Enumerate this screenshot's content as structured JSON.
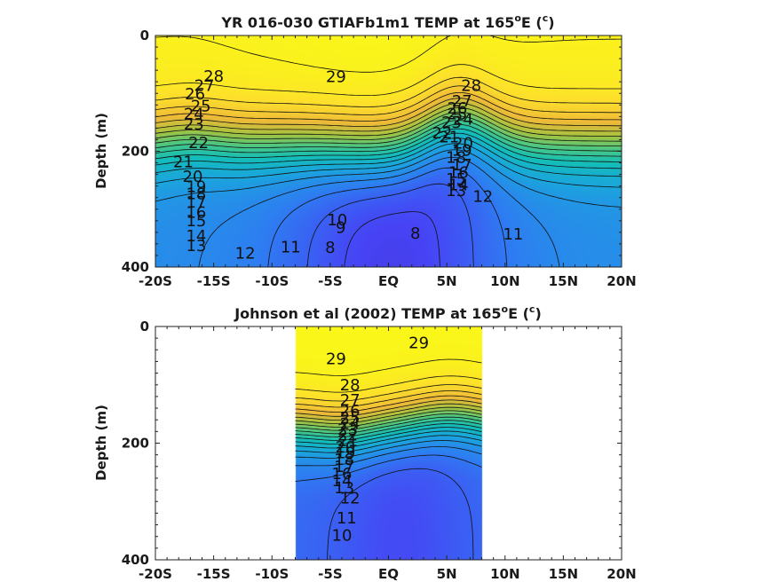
{
  "chart_data": [
    {
      "type": "heatmap",
      "subtype": "filled-contour",
      "title_prefix": "YR 016-030 GTIAFb1m1 TEMP at 165",
      "title_deg": "o",
      "title_mid": "E (",
      "title_unit": "c",
      "title_end": ")",
      "xlabel": "",
      "ylabel": "Depth (m)",
      "x_ticks": [
        -20,
        -15,
        -10,
        -5,
        0,
        5,
        10,
        15,
        20
      ],
      "x_tick_labels": [
        "-20S",
        "-15S",
        "-10S",
        "-5S",
        "EQ",
        "5N",
        "10N",
        "15N",
        "20N"
      ],
      "y_ticks": [
        0,
        200,
        400
      ],
      "y_tick_labels": [
        "0",
        "200",
        "400"
      ],
      "xlim": [
        -20,
        20
      ],
      "ylim": [
        0,
        400
      ],
      "y_reversed": true,
      "data_extent": [
        -20,
        20
      ],
      "colormap": [
        "#3e26a8",
        "#4743f5",
        "#2d7ff1",
        "#1aa6dc",
        "#13beb8",
        "#4cc782",
        "#a5c340",
        "#efba38",
        "#fde02b",
        "#f9fb15"
      ],
      "temp_range": [
        6,
        30
      ],
      "contour_labels": [
        {
          "text": "29",
          "x": -4.5,
          "y": 73
        },
        {
          "text": "28",
          "x": -15.0,
          "y": 72
        },
        {
          "text": "27",
          "x": -15.8,
          "y": 88
        },
        {
          "text": "26",
          "x": -16.6,
          "y": 103
        },
        {
          "text": "25",
          "x": -16.1,
          "y": 123
        },
        {
          "text": "24",
          "x": -16.7,
          "y": 137
        },
        {
          "text": "23",
          "x": -16.7,
          "y": 155
        },
        {
          "text": "22",
          "x": -16.3,
          "y": 187
        },
        {
          "text": "21",
          "x": -17.6,
          "y": 220
        },
        {
          "text": "20",
          "x": -16.8,
          "y": 245
        },
        {
          "text": "19",
          "x": -16.5,
          "y": 263
        },
        {
          "text": "18",
          "x": -16.5,
          "y": 275
        },
        {
          "text": "17",
          "x": -16.5,
          "y": 290
        },
        {
          "text": "16",
          "x": -16.5,
          "y": 307
        },
        {
          "text": "15",
          "x": -16.5,
          "y": 322
        },
        {
          "text": "14",
          "x": -16.5,
          "y": 348
        },
        {
          "text": "13",
          "x": -16.5,
          "y": 365
        },
        {
          "text": "12",
          "x": -12.3,
          "y": 378
        },
        {
          "text": "11",
          "x": -8.4,
          "y": 367
        },
        {
          "text": "10",
          "x": -4.4,
          "y": 320
        },
        {
          "text": "9",
          "x": -4.1,
          "y": 333
        },
        {
          "text": "8",
          "x": -5.0,
          "y": 368
        },
        {
          "text": "8",
          "x": 2.3,
          "y": 343
        },
        {
          "text": "28",
          "x": 7.1,
          "y": 88
        },
        {
          "text": "27",
          "x": 6.3,
          "y": 115
        },
        {
          "text": "26",
          "x": 5.9,
          "y": 127
        },
        {
          "text": "25",
          "x": 5.9,
          "y": 137
        },
        {
          "text": "24",
          "x": 6.4,
          "y": 146
        },
        {
          "text": "23",
          "x": 5.4,
          "y": 152
        },
        {
          "text": "22",
          "x": 4.6,
          "y": 170
        },
        {
          "text": "21",
          "x": 5.2,
          "y": 177
        },
        {
          "text": "20",
          "x": 6.4,
          "y": 188
        },
        {
          "text": "19",
          "x": 6.3,
          "y": 200
        },
        {
          "text": "18",
          "x": 5.8,
          "y": 212
        },
        {
          "text": "17",
          "x": 6.3,
          "y": 225
        },
        {
          "text": "16",
          "x": 6.0,
          "y": 238
        },
        {
          "text": "15",
          "x": 5.8,
          "y": 250
        },
        {
          "text": "14",
          "x": 6.0,
          "y": 260
        },
        {
          "text": "13",
          "x": 5.8,
          "y": 270
        },
        {
          "text": "12",
          "x": 8.1,
          "y": 280
        },
        {
          "text": "11",
          "x": 10.7,
          "y": 345
        }
      ]
    },
    {
      "type": "heatmap",
      "subtype": "filled-contour",
      "title_prefix": "Johnson et al (2002) TEMP at 165",
      "title_deg": "o",
      "title_mid": "E (",
      "title_unit": "c",
      "title_end": ")",
      "xlabel": "",
      "ylabel": "Depth (m)",
      "x_ticks": [
        -20,
        -15,
        -10,
        -5,
        0,
        5,
        10,
        15,
        20
      ],
      "x_tick_labels": [
        "-20S",
        "-15S",
        "-10S",
        "-5S",
        "EQ",
        "5N",
        "10N",
        "15N",
        "20N"
      ],
      "y_ticks": [
        0,
        200,
        400
      ],
      "y_tick_labels": [
        "0",
        "200",
        "400"
      ],
      "xlim": [
        -20,
        20
      ],
      "ylim": [
        0,
        400
      ],
      "y_reversed": true,
      "data_extent": [
        -8,
        8
      ],
      "colormap": [
        "#3e26a8",
        "#4743f5",
        "#2d7ff1",
        "#1aa6dc",
        "#13beb8",
        "#4cc782",
        "#a5c340",
        "#efba38",
        "#fde02b",
        "#f9fb15"
      ],
      "temp_range": [
        6,
        30
      ],
      "contour_labels": [
        {
          "text": "29",
          "x": 2.6,
          "y": 30
        },
        {
          "text": "29",
          "x": -4.5,
          "y": 57
        },
        {
          "text": "28",
          "x": -3.3,
          "y": 102
        },
        {
          "text": "27",
          "x": -3.3,
          "y": 128
        },
        {
          "text": "26",
          "x": -3.3,
          "y": 146
        },
        {
          "text": "25",
          "x": -3.3,
          "y": 158
        },
        {
          "text": "24",
          "x": -3.3,
          "y": 168
        },
        {
          "text": "23",
          "x": -3.5,
          "y": 178
        },
        {
          "text": "22",
          "x": -3.5,
          "y": 188
        },
        {
          "text": "21",
          "x": -3.5,
          "y": 198
        },
        {
          "text": "20",
          "x": -3.7,
          "y": 208
        },
        {
          "text": "19",
          "x": -3.7,
          "y": 218
        },
        {
          "text": "18",
          "x": -3.8,
          "y": 230
        },
        {
          "text": "17",
          "x": -3.8,
          "y": 242
        },
        {
          "text": "16",
          "x": -4.0,
          "y": 254
        },
        {
          "text": "14",
          "x": -4.0,
          "y": 266
        },
        {
          "text": "13",
          "x": -3.8,
          "y": 278
        },
        {
          "text": "12",
          "x": -3.3,
          "y": 296
        },
        {
          "text": "11",
          "x": -3.6,
          "y": 330
        },
        {
          "text": "10",
          "x": -4.0,
          "y": 360
        }
      ]
    }
  ]
}
